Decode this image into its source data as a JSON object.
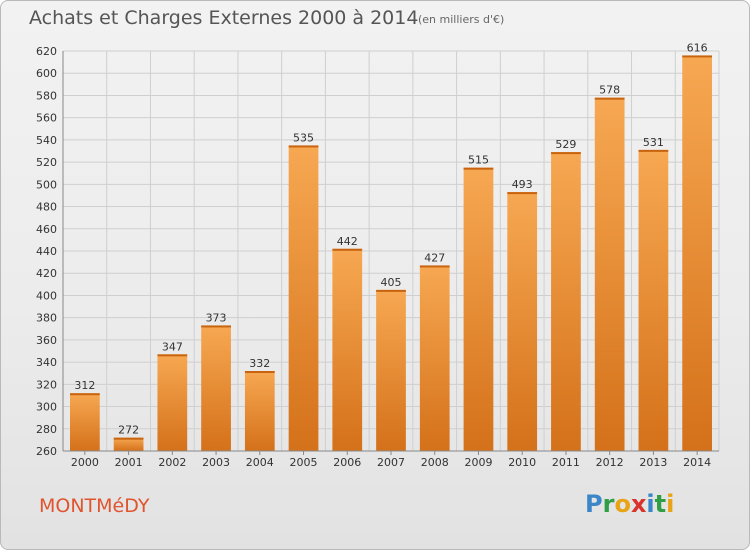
{
  "header": {
    "title": "Achats et Charges Externes 2000 à 2014",
    "unit": "(en milliers d'€)"
  },
  "footer": {
    "commune": "MONTMéDY",
    "logo": {
      "letters": [
        "P",
        "r",
        "o",
        "x",
        "i",
        "t",
        "i"
      ],
      "colors": [
        "#3a86c8",
        "#2f9e44",
        "#e8a317",
        "#d9342b",
        "#3a86c8",
        "#2f9e44",
        "#e8a317"
      ]
    }
  },
  "colors": {
    "bar_light": "#f7a852",
    "bar_dark": "#d4711a",
    "grid": "#cfcfcf",
    "axis": "#888888"
  },
  "chart_data": {
    "type": "bar",
    "categories": [
      "2000",
      "2001",
      "2002",
      "2003",
      "2004",
      "2005",
      "2006",
      "2007",
      "2008",
      "2009",
      "2010",
      "2011",
      "2012",
      "2013",
      "2014"
    ],
    "values": [
      312,
      272,
      347,
      373,
      332,
      535,
      442,
      405,
      427,
      515,
      493,
      529,
      578,
      531,
      616
    ],
    "ylim": [
      260,
      620
    ],
    "yticks": [
      260,
      280,
      300,
      320,
      340,
      360,
      380,
      400,
      420,
      440,
      460,
      480,
      500,
      520,
      540,
      560,
      580,
      600,
      620
    ],
    "grid": true,
    "data_labels": true
  }
}
